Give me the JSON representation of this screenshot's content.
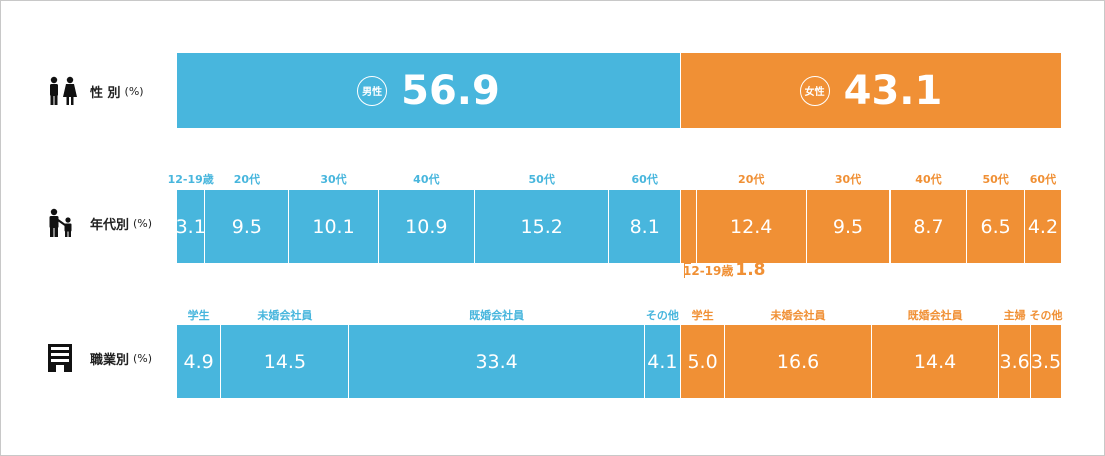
{
  "colors": {
    "male": "#48b6dd",
    "female": "#f09035",
    "divider": "#ffffff"
  },
  "chart_data": [
    {
      "type": "bar",
      "stacked": true,
      "orientation": "horizontal",
      "row_label": "性 別",
      "unit": "(%)",
      "icon": "couple-icon",
      "segments": [
        {
          "category": "男性",
          "value": 56.9,
          "group": "male"
        },
        {
          "category": "女性",
          "value": 43.1,
          "group": "female"
        }
      ]
    },
    {
      "type": "bar",
      "stacked": true,
      "orientation": "horizontal",
      "row_label": "年代別",
      "unit": "(%)",
      "icon": "parent-child-icon",
      "segments": [
        {
          "category": "12-19歳",
          "value": 3.1,
          "group": "male"
        },
        {
          "category": "20代",
          "value": 9.5,
          "group": "male"
        },
        {
          "category": "30代",
          "value": 10.1,
          "group": "male"
        },
        {
          "category": "40代",
          "value": 10.9,
          "group": "male"
        },
        {
          "category": "50代",
          "value": 15.2,
          "group": "male"
        },
        {
          "category": "60代",
          "value": 8.1,
          "group": "male"
        },
        {
          "category": "12-19歳",
          "value": 1.8,
          "group": "female",
          "callout": true
        },
        {
          "category": "20代",
          "value": 12.4,
          "group": "female"
        },
        {
          "category": "30代",
          "value": 9.5,
          "group": "female"
        },
        {
          "category": "40代",
          "value": 8.7,
          "group": "female"
        },
        {
          "category": "50代",
          "value": 6.5,
          "group": "female"
        },
        {
          "category": "60代",
          "value": 4.2,
          "group": "female"
        }
      ]
    },
    {
      "type": "bar",
      "stacked": true,
      "orientation": "horizontal",
      "row_label": "職業別",
      "unit": "(%)",
      "icon": "building-icon",
      "segments": [
        {
          "category": "学生",
          "value": 4.9,
          "group": "male"
        },
        {
          "category": "未婚会社員",
          "value": 14.5,
          "group": "male"
        },
        {
          "category": "既婚会社員",
          "value": 33.4,
          "group": "male"
        },
        {
          "category": "その他",
          "value": 4.1,
          "group": "male"
        },
        {
          "category": "学生",
          "value": 5.0,
          "group": "female"
        },
        {
          "category": "未婚会社員",
          "value": 16.6,
          "group": "female"
        },
        {
          "category": "既婚会社員",
          "value": 14.4,
          "group": "female"
        },
        {
          "category": "主婦",
          "value": 3.6,
          "group": "female"
        },
        {
          "category": "その他",
          "value": 3.5,
          "group": "female"
        }
      ]
    }
  ]
}
